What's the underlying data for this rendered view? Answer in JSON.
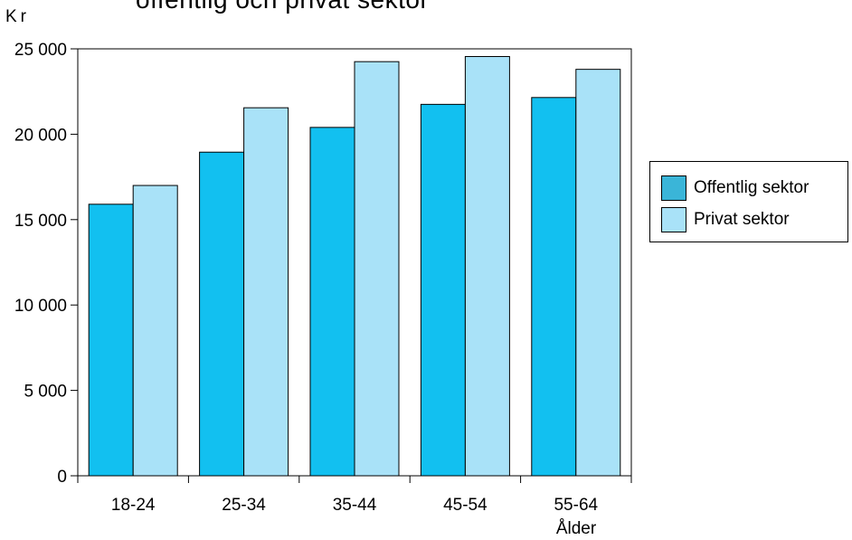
{
  "chart_data": {
    "type": "bar",
    "title": "offentlig och privat sektor",
    "ylabel": "Kr",
    "xlabel": "Ålder",
    "categories": [
      "18-24",
      "25-34",
      "35-44",
      "45-54",
      "55-64"
    ],
    "series": [
      {
        "name": "Offentlig sektor",
        "values": [
          15900,
          18950,
          20400,
          21750,
          22150
        ],
        "color": "#12c0f0",
        "legend_color": "#3ab5d8"
      },
      {
        "name": "Privat sektor",
        "values": [
          17000,
          21550,
          24250,
          24550,
          23800
        ],
        "color": "#a9e2f8",
        "legend_color": "#a9e2f8"
      }
    ],
    "ylim": [
      0,
      25000
    ],
    "yticks": [
      0,
      5000,
      10000,
      15000,
      20000,
      25000
    ],
    "ytick_labels": [
      "0",
      "5 000",
      "10 000",
      "15 000",
      "20 000",
      "25 000"
    ],
    "grid": false,
    "legend_position": "right"
  }
}
